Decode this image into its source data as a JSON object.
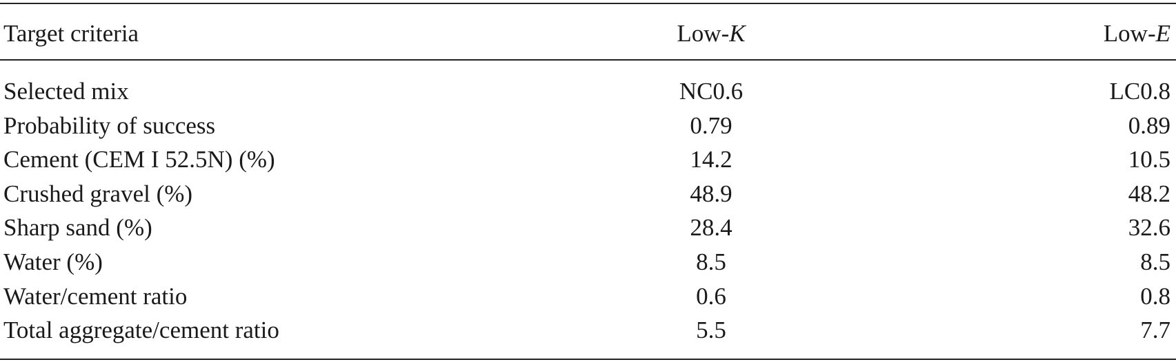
{
  "table": {
    "columns": [
      "Target criteria",
      [
        "Low-",
        "K"
      ],
      [
        "Low-",
        "E"
      ]
    ],
    "rows": [
      [
        "Selected mix",
        "NC0.6",
        "LC0.8"
      ],
      [
        "Probability of success",
        "0.79",
        "0.89"
      ],
      [
        "Cement (CEM I 52.5N) (%)",
        "14.2",
        "10.5"
      ],
      [
        "Crushed gravel (%)",
        "48.9",
        "48.2"
      ],
      [
        "Sharp sand (%)",
        "28.4",
        "32.6"
      ],
      [
        "Water (%)",
        "8.5",
        "8.5"
      ],
      [
        "Water/cement ratio",
        "0.6",
        "0.8"
      ],
      [
        "Total aggregate/cement ratio",
        "5.5",
        "7.7"
      ]
    ]
  }
}
